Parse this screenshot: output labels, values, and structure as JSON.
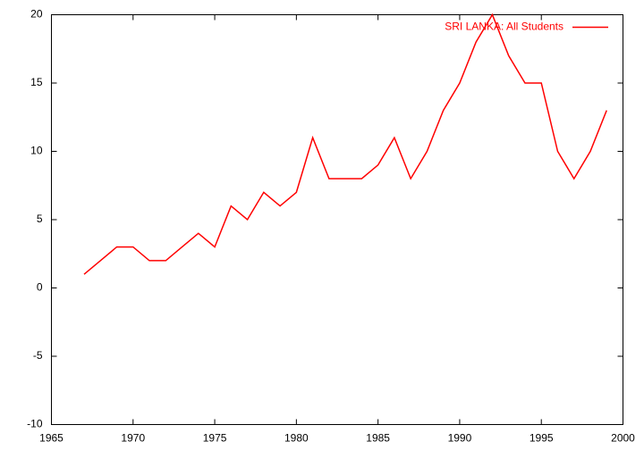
{
  "chart_data": {
    "type": "line",
    "x": [
      1967,
      1968,
      1969,
      1970,
      1971,
      1972,
      1973,
      1974,
      1975,
      1976,
      1977,
      1978,
      1979,
      1980,
      1981,
      1982,
      1983,
      1984,
      1985,
      1986,
      1987,
      1988,
      1989,
      1990,
      1991,
      1992,
      1993,
      1994,
      1995,
      1996,
      1997,
      1998,
      1999
    ],
    "series": [
      {
        "name": "SRI LANKA: All Students",
        "color": "#ff0000",
        "values": [
          1,
          2,
          3,
          3,
          2,
          2,
          3,
          4,
          3,
          6,
          5,
          7,
          6,
          7,
          11,
          8,
          8,
          8,
          9,
          11,
          8,
          10,
          13,
          15,
          18,
          20,
          17,
          15,
          15,
          10,
          8,
          10,
          13
        ]
      }
    ],
    "xlim": [
      1965,
      2000
    ],
    "xticks": [
      1965,
      1970,
      1975,
      1980,
      1985,
      1990,
      1995,
      2000
    ],
    "ylim": [
      -10,
      20
    ],
    "yticks": [
      -10,
      -5,
      0,
      5,
      10,
      15,
      20
    ],
    "legend": "top-right",
    "grid": false
  }
}
